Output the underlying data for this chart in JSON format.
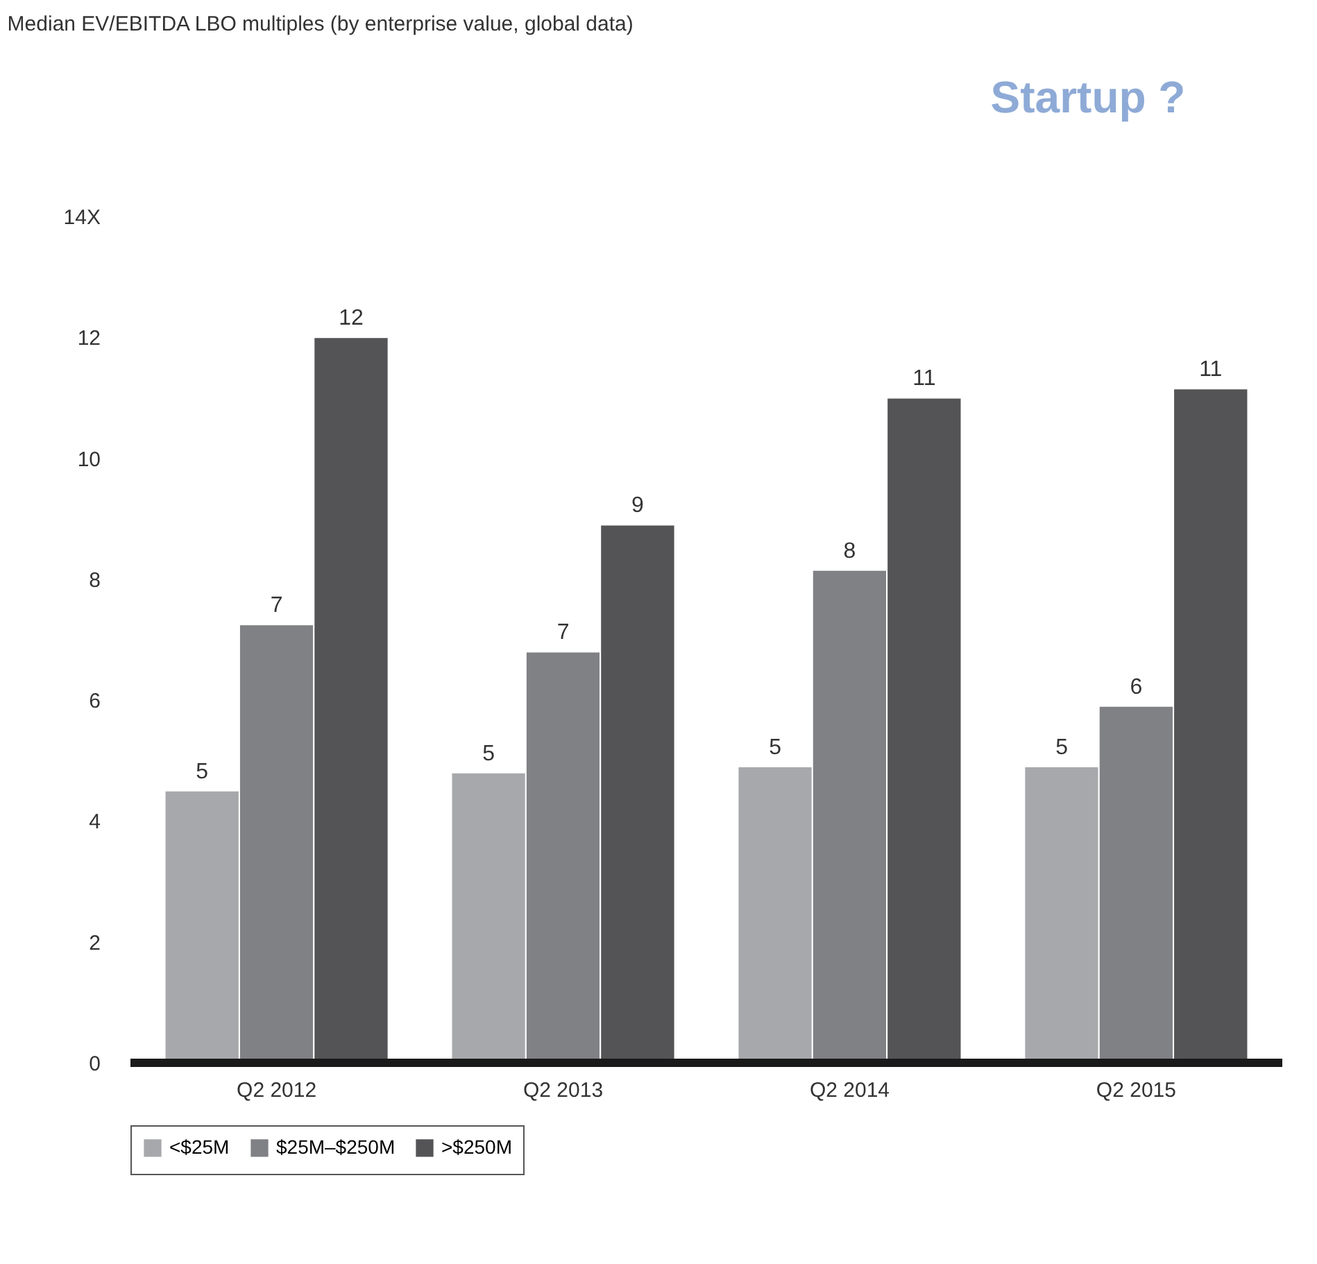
{
  "chart_data": {
    "type": "bar",
    "title": "Median EV/EBITDA LBO multiples (by enterprise value, global data)",
    "categories": [
      "Q2 2012",
      "Q2 2013",
      "Q2 2014",
      "Q2 2015"
    ],
    "series": [
      {
        "name": "<$25M",
        "color": "#a7a8ab",
        "values": [
          4.5,
          4.8,
          4.9,
          4.9
        ],
        "value_labels": [
          "5",
          "5",
          "5",
          "5"
        ]
      },
      {
        "name": "$25M–$250M",
        "color": "#808185",
        "values": [
          7.25,
          6.8,
          8.15,
          5.9
        ],
        "value_labels": [
          "7",
          "7",
          "8",
          "6"
        ]
      },
      {
        "name": ">$250M",
        "color": "#545456",
        "values": [
          12,
          8.9,
          11,
          11.15
        ],
        "value_labels": [
          "12",
          "9",
          "11",
          "11"
        ]
      }
    ],
    "ylim": [
      0,
      14
    ],
    "yticks": [
      0,
      2,
      4,
      6,
      8,
      10,
      12,
      {
        "value": 14,
        "label": "14X"
      }
    ],
    "annotations": [
      "Startup ?"
    ],
    "grid": false,
    "legend": "bottom"
  }
}
